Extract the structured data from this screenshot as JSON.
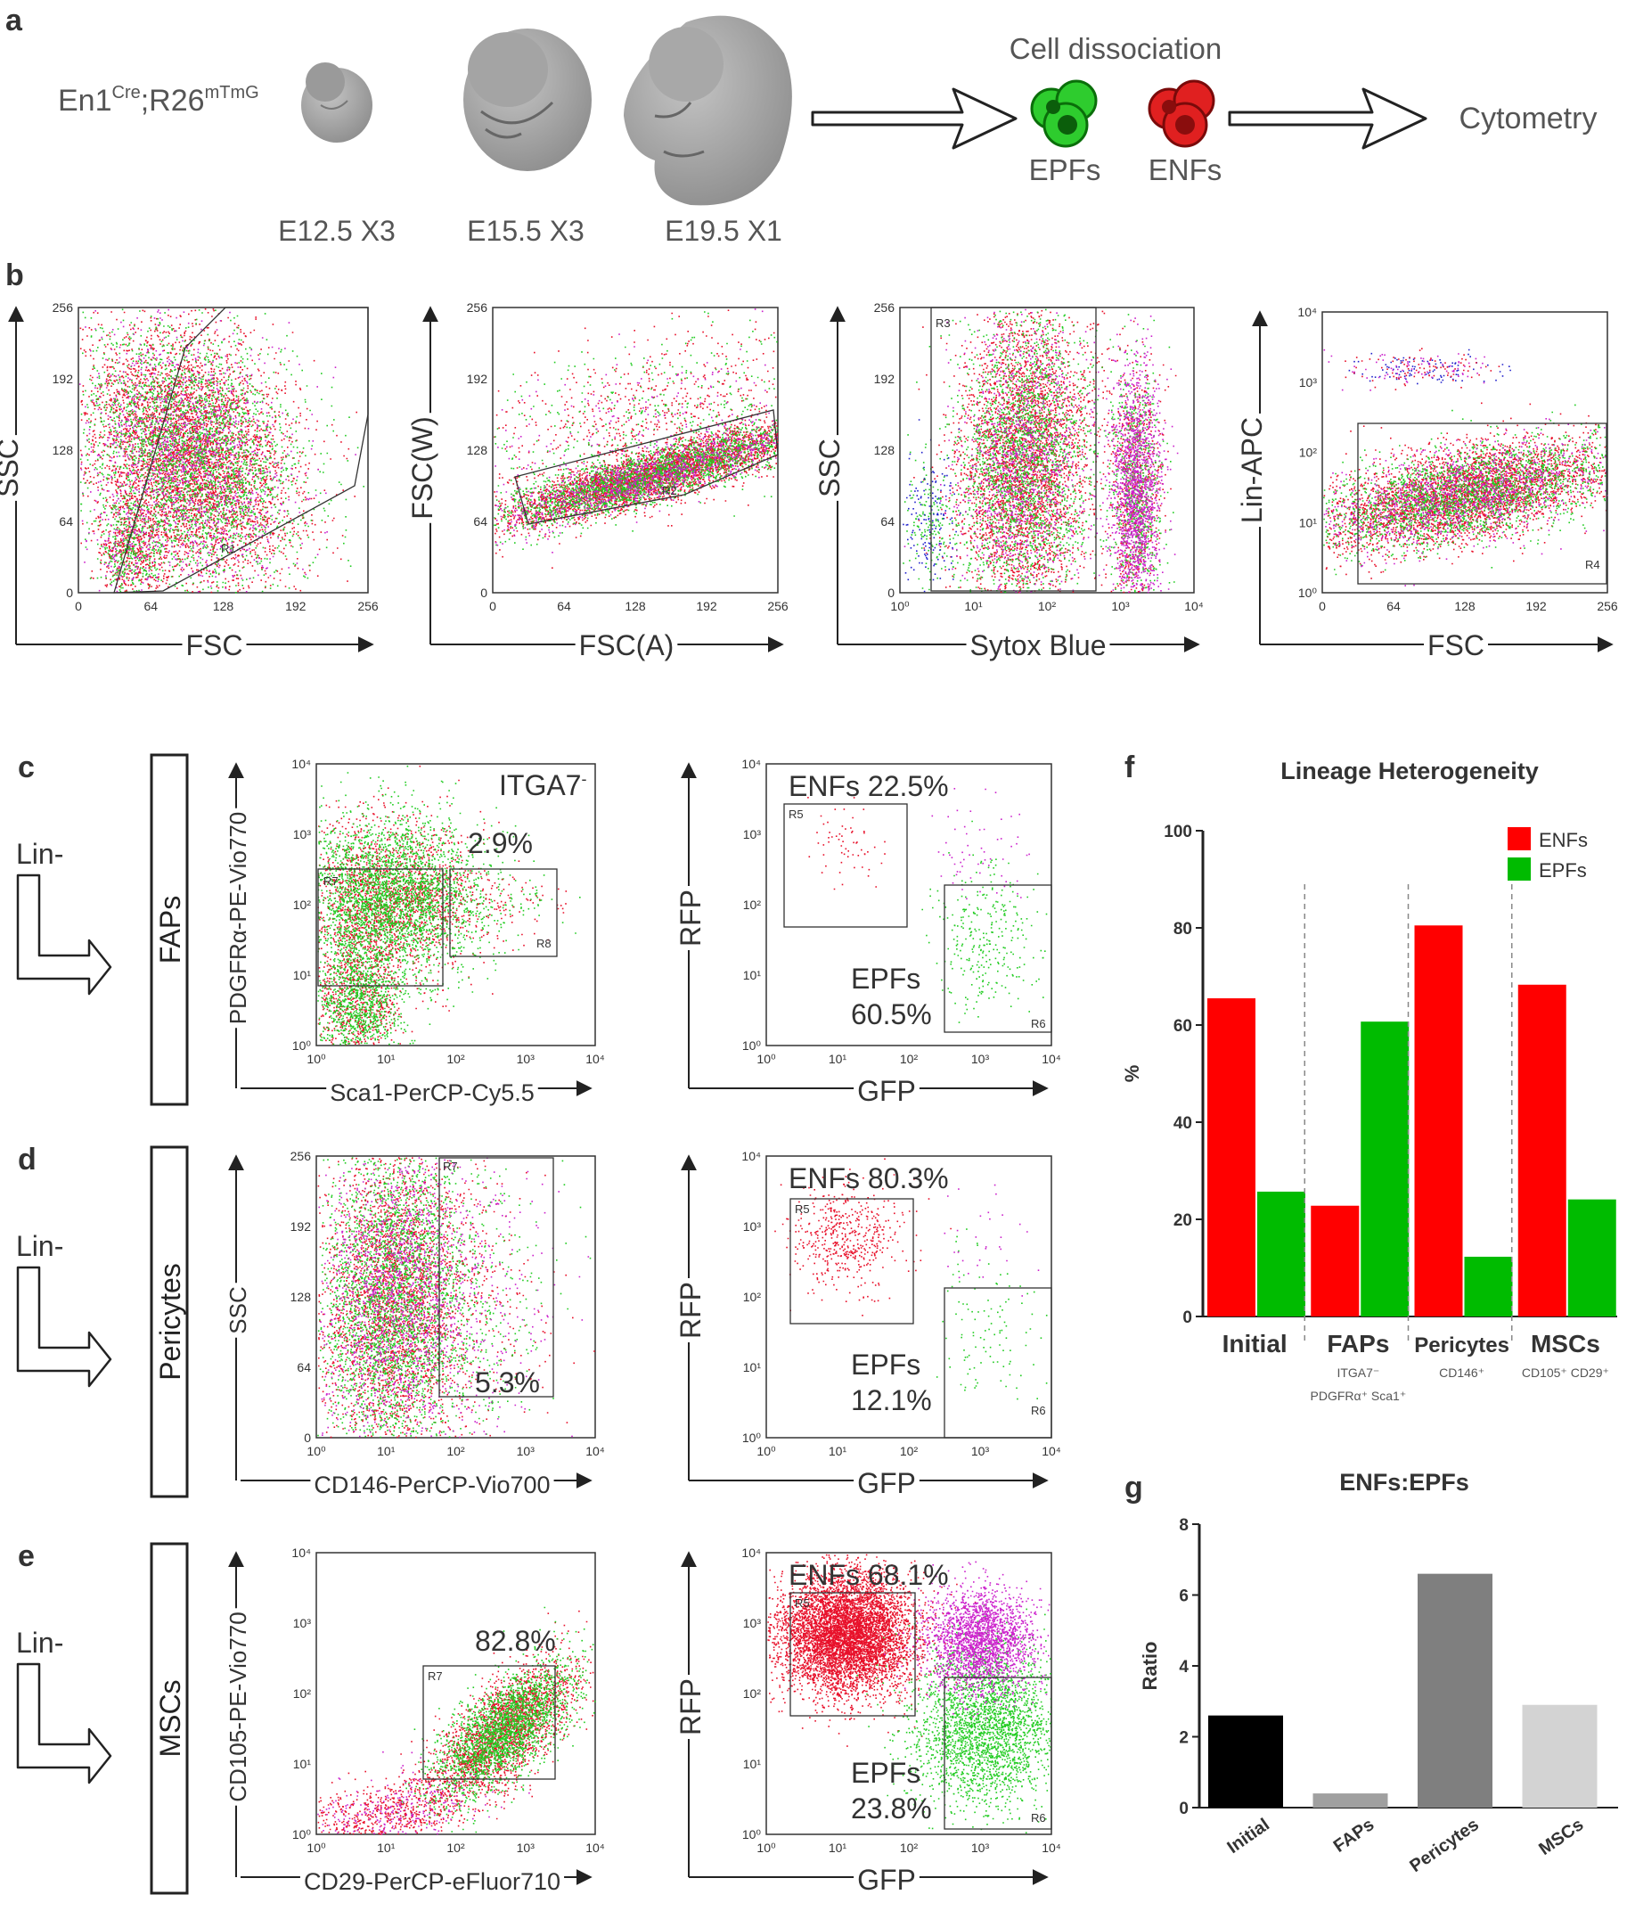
{
  "panel_letters": [
    "a",
    "b",
    "c",
    "d",
    "e",
    "f",
    "g"
  ],
  "panel_a": {
    "genotype": "En1Cre;R26mTmG",
    "genotype_main": "En1",
    "genotype_sup1": "Cre",
    "genotype_mid": ";R26",
    "genotype_sup2": "mTmG",
    "stages": [
      "E12.5 X3",
      "E15.5 X3",
      "E19.5 X1"
    ],
    "step1": "Cell dissociation",
    "cell_labels": [
      "EPFs",
      "ENFs"
    ],
    "step2": "Cytometry",
    "colors": {
      "epf": "#2ecc2e",
      "enf": "#e02020",
      "embryo": "#a8a8a8"
    }
  },
  "panel_b": [
    {
      "xlabel": "FSC",
      "ylabel": "SSC",
      "gate": "R1",
      "xticks": [
        "0",
        "64",
        "128",
        "192",
        "256"
      ],
      "yticks": [
        "0",
        "64",
        "128",
        "192",
        "256"
      ]
    },
    {
      "xlabel": "FSC(A)",
      "ylabel": "FSC(W)",
      "gate": "R2",
      "xticks": [
        "0",
        "64",
        "128",
        "192",
        "256"
      ],
      "yticks": [
        "0",
        "64",
        "128",
        "192",
        "256"
      ]
    },
    {
      "xlabel": "Sytox Blue",
      "ylabel": "SSC",
      "gate": "R3",
      "xticks": [
        "10⁰",
        "10¹",
        "10²",
        "10³",
        "10⁴"
      ],
      "yticks": [
        "0",
        "64",
        "128",
        "192",
        "256"
      ]
    },
    {
      "xlabel": "FSC",
      "ylabel": "Lin-APC",
      "gate": "R4",
      "xticks": [
        "0",
        "64",
        "128",
        "192",
        "256"
      ],
      "yticks": [
        "10⁰",
        "10¹",
        "10²",
        "10³",
        "10⁴"
      ]
    }
  ],
  "rows": [
    {
      "letter": "c",
      "lin": "Lin-",
      "population": "FAPs",
      "left": {
        "xlabel": "Sca1-PerCP-Cy5.5",
        "ylabel": "PDGFRα-PE-Vio770",
        "corner": "ITGA7",
        "corner_sup": "-",
        "pct": "2.9%",
        "gates": [
          "R7",
          "R8"
        ],
        "xticks": [
          "10⁰",
          "10¹",
          "10²",
          "10³",
          "10⁴"
        ],
        "yticks": [
          "10⁰",
          "10¹",
          "10²",
          "10³",
          "10⁴"
        ]
      },
      "right": {
        "xlabel": "GFP",
        "ylabel": "RFP",
        "enf": "ENFs 22.5%",
        "epf1": "EPFs",
        "epf2": "60.5%",
        "gates": [
          "R5",
          "R6"
        ],
        "xticks": [
          "10⁰",
          "10¹",
          "10²",
          "10³",
          "10⁴"
        ],
        "yticks": [
          "10⁰",
          "10¹",
          "10²",
          "10³",
          "10⁴"
        ]
      }
    },
    {
      "letter": "d",
      "lin": "Lin-",
      "population": "Pericytes",
      "left": {
        "xlabel": "CD146-PerCP-Vio700",
        "ylabel": "SSC",
        "pct": "5.3%",
        "gates": [
          "R7"
        ],
        "xticks": [
          "10⁰",
          "10¹",
          "10²",
          "10³",
          "10⁴"
        ],
        "yticks": [
          "0",
          "64",
          "128",
          "192",
          "256"
        ]
      },
      "right": {
        "xlabel": "GFP",
        "ylabel": "RFP",
        "enf": "ENFs 80.3%",
        "epf1": "EPFs",
        "epf2": "12.1%",
        "gates": [
          "R5",
          "R6"
        ],
        "xticks": [
          "10⁰",
          "10¹",
          "10²",
          "10³",
          "10⁴"
        ],
        "yticks": [
          "10⁰",
          "10¹",
          "10²",
          "10³",
          "10⁴"
        ]
      }
    },
    {
      "letter": "e",
      "lin": "Lin-",
      "population": "MSCs",
      "left": {
        "xlabel": "CD29-PerCP-eFluor710",
        "ylabel": "CD105-PE-Vio770",
        "pct": "82.8%",
        "gates": [
          "R7"
        ],
        "xticks": [
          "10⁰",
          "10¹",
          "10²",
          "10³",
          "10⁴"
        ],
        "yticks": [
          "10⁰",
          "10¹",
          "10²",
          "10³",
          "10⁴"
        ]
      },
      "right": {
        "xlabel": "GFP",
        "ylabel": "RFP",
        "enf": "ENFs 68.1%",
        "epf1": "EPFs",
        "epf2": "23.8%",
        "gates": [
          "R5",
          "R6"
        ],
        "xticks": [
          "10⁰",
          "10¹",
          "10²",
          "10³",
          "10⁴"
        ],
        "yticks": [
          "10⁰",
          "10¹",
          "10²",
          "10³",
          "10⁴"
        ]
      }
    }
  ],
  "chart_data": [
    {
      "panel": "f",
      "type": "bar",
      "title": "Lineage Heterogeneity",
      "ylabel": "%",
      "xlabel": "",
      "ylim": [
        0,
        100
      ],
      "yticks": [
        0,
        20,
        40,
        60,
        80,
        100
      ],
      "categories": [
        "Initial",
        "FAPs",
        "Pericytes",
        "MSCs"
      ],
      "sublabels": [
        [
          "",
          ""
        ],
        [
          "ITGA7⁻",
          "PDGFRα⁺ Sca1⁺"
        ],
        [
          "CD146⁺",
          ""
        ],
        [
          "CD105⁺ CD29⁺",
          ""
        ]
      ],
      "series": [
        {
          "name": "ENFs",
          "color": "#ff0000",
          "values": [
            65.5,
            22.8,
            80.5,
            68.3
          ]
        },
        {
          "name": "EPFs",
          "color": "#00bb00",
          "values": [
            25.7,
            60.7,
            12.3,
            24.1
          ]
        }
      ],
      "legend": "top-right",
      "grid": false
    },
    {
      "panel": "g",
      "type": "bar",
      "title": "ENFs:EPFs",
      "ylabel": "Ratio",
      "xlabel": "",
      "ylim": [
        0,
        8
      ],
      "yticks": [
        0,
        2,
        4,
        6,
        8
      ],
      "categories": [
        "Initial",
        "FAPs",
        "Pericytes",
        "MSCs"
      ],
      "values": [
        2.6,
        0.4,
        6.6,
        2.9
      ],
      "colors": [
        "#000000",
        "#a0a0a0",
        "#7f7f7f",
        "#d3d3d3"
      ],
      "grid": false
    }
  ]
}
